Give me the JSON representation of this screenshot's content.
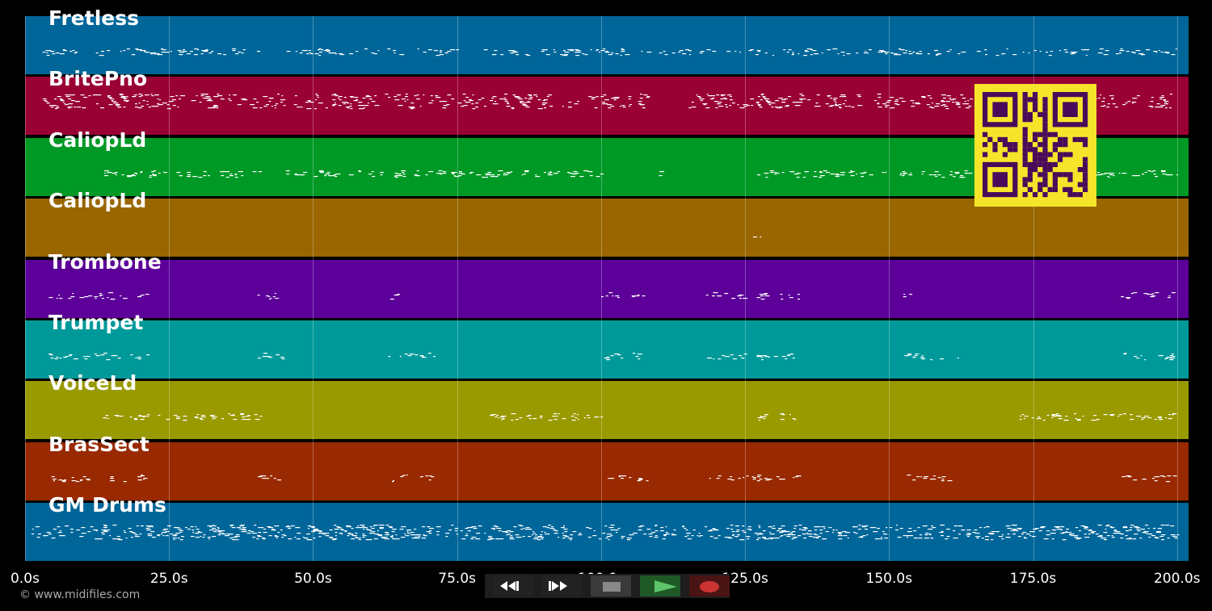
{
  "tracks": [
    {
      "name": "Fretless",
      "color": "#006699"
    },
    {
      "name": "BritePno",
      "color": "#990033"
    },
    {
      "name": "CaliopLd",
      "color": "#009926"
    },
    {
      "name": "CaliopLd",
      "color": "#996600"
    },
    {
      "name": "Trombone",
      "color": "#5c0099"
    },
    {
      "name": "Trumpet",
      "color": "#009999"
    },
    {
      "name": "VoiceLd",
      "color": "#999900"
    },
    {
      "name": "BrasSect",
      "color": "#992900"
    },
    {
      "name": "GM Drums",
      "color": "#006699"
    }
  ],
  "timeline": {
    "unit": "s",
    "min": 0,
    "max": 202,
    "ticks": [
      "0.0s",
      "25.0s",
      "50.0s",
      "75.0s",
      "100.0s",
      "125.0s",
      "150.0s",
      "175.0s",
      "200.0s"
    ],
    "tick_values": [
      0,
      25,
      50,
      75,
      100,
      125,
      150,
      175,
      200
    ]
  },
  "footer": {
    "copyright": "© www.midifiles.com"
  },
  "transport": {
    "buttons": [
      {
        "name": "rewind-button",
        "icon": "rewind-icon"
      },
      {
        "name": "fast-forward-button",
        "icon": "fast-forward-icon"
      },
      {
        "name": "stop-button",
        "icon": "stop-icon"
      },
      {
        "name": "play-button",
        "icon": "play-icon",
        "color": "#2e8b3a"
      },
      {
        "name": "record-button",
        "icon": "record-icon",
        "color": "#cc3333"
      }
    ]
  },
  "qr_code": {
    "color": "#f5e52a",
    "module_color": "#4a0a5a"
  }
}
